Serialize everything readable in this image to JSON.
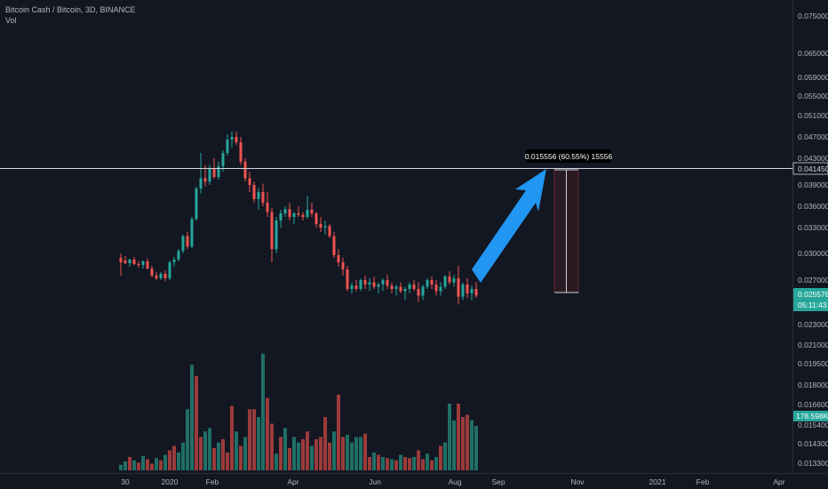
{
  "header": {
    "symbol_line": "Bitcoin Cash / Bitcoin, 3D, BINANCE",
    "volume_label": "Vol"
  },
  "colors": {
    "background": "#131722",
    "up": "#26a69a",
    "down": "#ef5350",
    "up_volume": "#1f6f66",
    "down_volume": "#9c3b3b",
    "axis_text": "#b2b5be",
    "arrow": "#2196f3",
    "range_fill": "#2a1a22"
  },
  "chart_data": {
    "type": "candlestick",
    "y_axis_ticks": [
      "0.075000",
      "0.065000",
      "0.059000",
      "0.055000",
      "0.051000",
      "0.047000",
      "0.043000",
      "0.039000",
      "0.036000",
      "0.033000",
      "0.030000",
      "0.027000",
      "0.023000",
      "0.021000",
      "0.019500",
      "0.018000",
      "0.016600",
      "0.015400",
      "0.014300",
      "0.013300"
    ],
    "x_axis_ticks": [
      "30",
      "2020",
      "Feb",
      "Apr",
      "Jun",
      "Aug",
      "Sep",
      "Nov",
      "2021",
      "Feb",
      "Apr"
    ],
    "last_price": "0.025578",
    "countdown": "05:11:43",
    "level_price": "0.041450",
    "volume_label": "178.598K",
    "measure_label": "0.015556 (60.55%) 15556",
    "ohlc": [
      [
        0.0295,
        0.03,
        0.0275,
        0.029
      ],
      [
        0.0292,
        0.0297,
        0.0288,
        0.0289
      ],
      [
        0.0289,
        0.0294,
        0.0285,
        0.0293
      ],
      [
        0.0293,
        0.0296,
        0.0287,
        0.0288
      ],
      [
        0.0288,
        0.0291,
        0.0284,
        0.0287
      ],
      [
        0.0287,
        0.0292,
        0.0283,
        0.0291
      ],
      [
        0.0291,
        0.0294,
        0.0282,
        0.0283
      ],
      [
        0.0283,
        0.0286,
        0.0273,
        0.0275
      ],
      [
        0.0275,
        0.0279,
        0.027,
        0.0272
      ],
      [
        0.0272,
        0.0279,
        0.027,
        0.0277
      ],
      [
        0.0277,
        0.0281,
        0.0269,
        0.0272
      ],
      [
        0.0272,
        0.0292,
        0.027,
        0.029
      ],
      [
        0.029,
        0.0296,
        0.0285,
        0.0293
      ],
      [
        0.0293,
        0.0305,
        0.0291,
        0.0303
      ],
      [
        0.0303,
        0.0322,
        0.03,
        0.032
      ],
      [
        0.032,
        0.0325,
        0.0305,
        0.0308
      ],
      [
        0.0308,
        0.0345,
        0.0306,
        0.0342
      ],
      [
        0.0342,
        0.0388,
        0.034,
        0.0385
      ],
      [
        0.0385,
        0.044,
        0.0378,
        0.04
      ],
      [
        0.04,
        0.042,
        0.0388,
        0.0395
      ],
      [
        0.0395,
        0.042,
        0.039,
        0.0415
      ],
      [
        0.0415,
        0.043,
        0.04,
        0.0402
      ],
      [
        0.0402,
        0.0425,
        0.0398,
        0.0418
      ],
      [
        0.0418,
        0.0445,
        0.041,
        0.044
      ],
      [
        0.044,
        0.0475,
        0.0435,
        0.0465
      ],
      [
        0.0465,
        0.048,
        0.045,
        0.047
      ],
      [
        0.047,
        0.048,
        0.0455,
        0.046
      ],
      [
        0.046,
        0.047,
        0.042,
        0.0425
      ],
      [
        0.0425,
        0.043,
        0.0395,
        0.04
      ],
      [
        0.04,
        0.041,
        0.038,
        0.039
      ],
      [
        0.039,
        0.0395,
        0.0365,
        0.037
      ],
      [
        0.037,
        0.0385,
        0.0355,
        0.038
      ],
      [
        0.038,
        0.0392,
        0.036,
        0.0365
      ],
      [
        0.0365,
        0.038,
        0.0345,
        0.0352
      ],
      [
        0.0352,
        0.0358,
        0.029,
        0.0305
      ],
      [
        0.0305,
        0.0345,
        0.03,
        0.034
      ],
      [
        0.034,
        0.0355,
        0.033,
        0.035
      ],
      [
        0.035,
        0.036,
        0.0345,
        0.0356
      ],
      [
        0.0356,
        0.0365,
        0.034,
        0.0345
      ],
      [
        0.0345,
        0.0352,
        0.0335,
        0.035
      ],
      [
        0.035,
        0.036,
        0.0345,
        0.0348
      ],
      [
        0.0348,
        0.0352,
        0.034,
        0.0345
      ],
      [
        0.0345,
        0.0375,
        0.0343,
        0.0355
      ],
      [
        0.0355,
        0.0365,
        0.0345,
        0.035
      ],
      [
        0.035,
        0.0352,
        0.033,
        0.0335
      ],
      [
        0.0335,
        0.0345,
        0.0325,
        0.033
      ],
      [
        0.033,
        0.034,
        0.0322,
        0.0332
      ],
      [
        0.0332,
        0.0335,
        0.0318,
        0.032
      ],
      [
        0.032,
        0.0325,
        0.0295,
        0.0298
      ],
      [
        0.0298,
        0.0305,
        0.0285,
        0.029
      ],
      [
        0.029,
        0.0295,
        0.0275,
        0.0282
      ],
      [
        0.0282,
        0.0286,
        0.026,
        0.0262
      ],
      [
        0.0262,
        0.0268,
        0.0258,
        0.0265
      ],
      [
        0.0265,
        0.027,
        0.026,
        0.0262
      ],
      [
        0.0262,
        0.0272,
        0.026,
        0.027
      ],
      [
        0.027,
        0.0275,
        0.0262,
        0.0266
      ],
      [
        0.0266,
        0.0272,
        0.026,
        0.0268
      ],
      [
        0.0268,
        0.0274,
        0.0262,
        0.0264
      ],
      [
        0.0264,
        0.0268,
        0.0258,
        0.0266
      ],
      [
        0.0266,
        0.0272,
        0.026,
        0.027
      ],
      [
        0.027,
        0.0276,
        0.0262,
        0.0265
      ],
      [
        0.0265,
        0.0268,
        0.0258,
        0.0262
      ],
      [
        0.0262,
        0.0266,
        0.0256,
        0.0264
      ],
      [
        0.0264,
        0.0268,
        0.0258,
        0.026
      ],
      [
        0.026,
        0.0264,
        0.0252,
        0.0262
      ],
      [
        0.0262,
        0.0268,
        0.0258,
        0.0266
      ],
      [
        0.0266,
        0.027,
        0.026,
        0.0262
      ],
      [
        0.0262,
        0.0268,
        0.025,
        0.0256
      ],
      [
        0.0256,
        0.0266,
        0.0252,
        0.0264
      ],
      [
        0.0264,
        0.0272,
        0.0262,
        0.027
      ],
      [
        0.027,
        0.0274,
        0.0262,
        0.0266
      ],
      [
        0.0266,
        0.027,
        0.0256,
        0.026
      ],
      [
        0.026,
        0.0268,
        0.0256,
        0.0264
      ],
      [
        0.0264,
        0.0276,
        0.0262,
        0.0274
      ],
      [
        0.0274,
        0.028,
        0.0266,
        0.0268
      ],
      [
        0.0268,
        0.0276,
        0.0264,
        0.0272
      ],
      [
        0.0272,
        0.0286,
        0.0248,
        0.0255
      ],
      [
        0.0255,
        0.0268,
        0.0252,
        0.0266
      ],
      [
        0.0266,
        0.0272,
        0.0254,
        0.0258
      ],
      [
        0.0258,
        0.0265,
        0.0252,
        0.0262
      ],
      [
        0.0262,
        0.0268,
        0.0254,
        0.0256
      ]
    ],
    "volume": [
      [
        5,
        1
      ],
      [
        8,
        1
      ],
      [
        12,
        0
      ],
      [
        9,
        1
      ],
      [
        7,
        0
      ],
      [
        13,
        1
      ],
      [
        10,
        0
      ],
      [
        6,
        0
      ],
      [
        11,
        1
      ],
      [
        9,
        0
      ],
      [
        14,
        1
      ],
      [
        18,
        0
      ],
      [
        22,
        0
      ],
      [
        16,
        1
      ],
      [
        25,
        1
      ],
      [
        55,
        1
      ],
      [
        95,
        1
      ],
      [
        85,
        0
      ],
      [
        30,
        0
      ],
      [
        35,
        1
      ],
      [
        38,
        1
      ],
      [
        20,
        0
      ],
      [
        25,
        1
      ],
      [
        28,
        0
      ],
      [
        16,
        0
      ],
      [
        58,
        0
      ],
      [
        35,
        1
      ],
      [
        22,
        0
      ],
      [
        30,
        1
      ],
      [
        55,
        0
      ],
      [
        55,
        0
      ],
      [
        48,
        1
      ],
      [
        105,
        1
      ],
      [
        65,
        0
      ],
      [
        42,
        0
      ],
      [
        15,
        1
      ],
      [
        30,
        0
      ],
      [
        38,
        1
      ],
      [
        20,
        0
      ],
      [
        30,
        1
      ],
      [
        25,
        1
      ],
      [
        28,
        0
      ],
      [
        35,
        0
      ],
      [
        22,
        1
      ],
      [
        28,
        0
      ],
      [
        30,
        0
      ],
      [
        48,
        0
      ],
      [
        25,
        0
      ],
      [
        35,
        1
      ],
      [
        68,
        0
      ],
      [
        30,
        0
      ],
      [
        32,
        1
      ],
      [
        25,
        1
      ],
      [
        30,
        1
      ],
      [
        30,
        1
      ],
      [
        33,
        0
      ],
      [
        12,
        0
      ],
      [
        16,
        1
      ],
      [
        14,
        0
      ],
      [
        12,
        1
      ],
      [
        11,
        0
      ],
      [
        10,
        1
      ],
      [
        9,
        0
      ],
      [
        14,
        1
      ],
      [
        12,
        0
      ],
      [
        11,
        0
      ],
      [
        12,
        1
      ],
      [
        18,
        0
      ],
      [
        10,
        0
      ],
      [
        15,
        1
      ],
      [
        9,
        0
      ],
      [
        12,
        1
      ],
      [
        22,
        0
      ],
      [
        25,
        1
      ],
      [
        60,
        1
      ],
      [
        45,
        1
      ],
      [
        60,
        0
      ],
      [
        48,
        0
      ],
      [
        50,
        0
      ],
      [
        45,
        1
      ],
      [
        40,
        1
      ]
    ]
  }
}
